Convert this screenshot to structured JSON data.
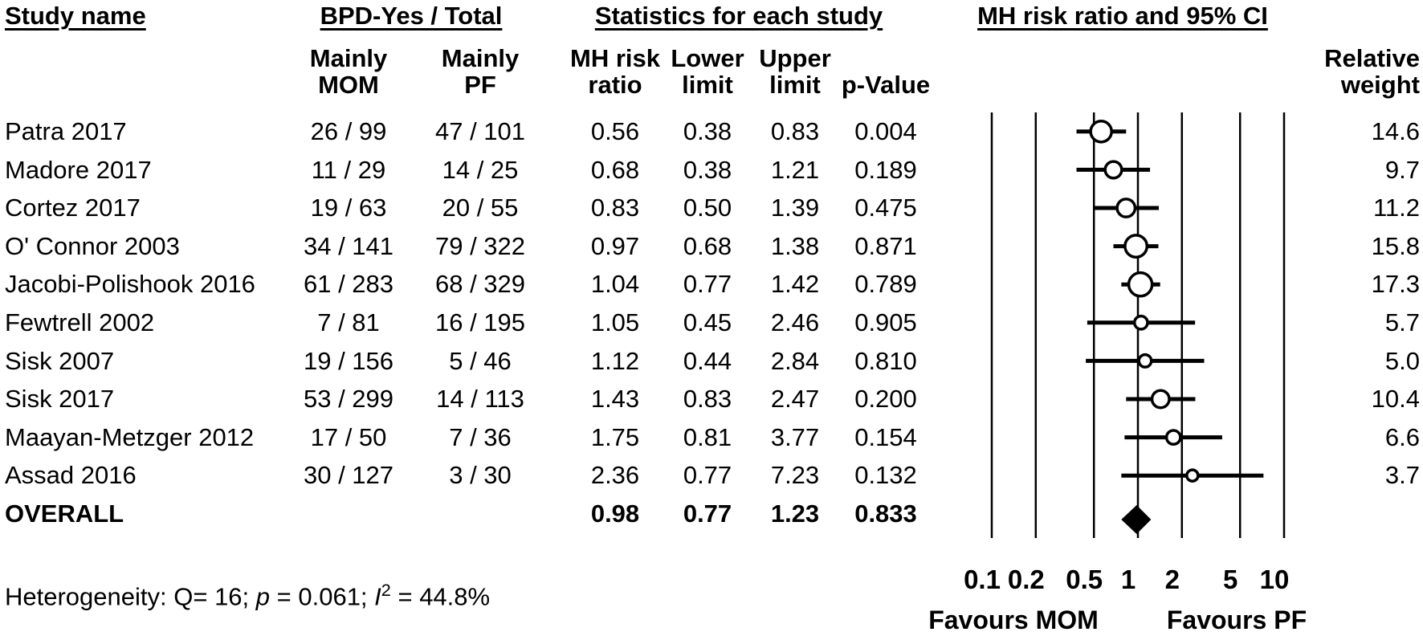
{
  "headers": {
    "study_name": "Study name",
    "bpd_total": "BPD-Yes / Total",
    "statistics": "Statistics for each study",
    "plot": "MH risk ratio and 95% CI",
    "col_mom": "Mainly\nMOM",
    "col_pf": "Mainly\nPF",
    "col_rr": "MH risk\nratio",
    "col_lower": "Lower\nlimit",
    "col_upper": "Upper\nlimit",
    "col_p": "p-Value",
    "col_weight": "Relative\nweight"
  },
  "chart_data": {
    "type": "forest",
    "x_scale": "log10",
    "x_range": [
      0.1,
      10
    ],
    "x_ticks": [
      "0.1",
      "0.2",
      "0.5",
      "1",
      "2",
      "5",
      "10"
    ],
    "grid": "vertical-lines-at-ticks",
    "axis_label_left": "Favours MOM",
    "axis_label_right": "Favours PF",
    "studies": [
      {
        "name": "Patra 2017",
        "mom": "26 / 99",
        "pf": "47 / 101",
        "rr": "0.56",
        "lower": "0.38",
        "upper": "0.83",
        "p": "0.004",
        "weight": "14.6"
      },
      {
        "name": "Madore 2017",
        "mom": "11 / 29",
        "pf": "14 / 25",
        "rr": "0.68",
        "lower": "0.38",
        "upper": "1.21",
        "p": "0.189",
        "weight": "9.7"
      },
      {
        "name": "Cortez 2017",
        "mom": "19 / 63",
        "pf": "20 / 55",
        "rr": "0.83",
        "lower": "0.50",
        "upper": "1.39",
        "p": "0.475",
        "weight": "11.2"
      },
      {
        "name": "O' Connor 2003",
        "mom": "34 / 141",
        "pf": "79 / 322",
        "rr": "0.97",
        "lower": "0.68",
        "upper": "1.38",
        "p": "0.871",
        "weight": "15.8"
      },
      {
        "name": "Jacobi-Polishook 2016",
        "mom": "61 / 283",
        "pf": "68 / 329",
        "rr": "1.04",
        "lower": "0.77",
        "upper": "1.42",
        "p": "0.789",
        "weight": "17.3"
      },
      {
        "name": "Fewtrell 2002",
        "mom": "7 / 81",
        "pf": "16 / 195",
        "rr": "1.05",
        "lower": "0.45",
        "upper": "2.46",
        "p": "0.905",
        "weight": "5.7"
      },
      {
        "name": "Sisk 2007",
        "mom": "19 / 156",
        "pf": "5 / 46",
        "rr": "1.12",
        "lower": "0.44",
        "upper": "2.84",
        "p": "0.810",
        "weight": "5.0"
      },
      {
        "name": "Sisk 2017",
        "mom": "53 / 299",
        "pf": "14 / 113",
        "rr": "1.43",
        "lower": "0.83",
        "upper": "2.47",
        "p": "0.200",
        "weight": "10.4"
      },
      {
        "name": "Maayan-Metzger 2012",
        "mom": "17 / 50",
        "pf": "7 / 36",
        "rr": "1.75",
        "lower": "0.81",
        "upper": "3.77",
        "p": "0.154",
        "weight": "6.6"
      },
      {
        "name": "Assad 2016",
        "mom": "30 / 127",
        "pf": "3 / 30",
        "rr": "2.36",
        "lower": "0.77",
        "upper": "7.23",
        "p": "0.132",
        "weight": "3.7"
      }
    ],
    "overall": {
      "name": "OVERALL",
      "rr": "0.98",
      "lower": "0.77",
      "upper": "1.23",
      "p": "0.833"
    }
  },
  "footer": {
    "heterogeneity_prefix": "Heterogeneity: Q= 16; ",
    "p_symbol": "p",
    "p_part": " = 0.061; ",
    "i_symbol": "I",
    "i_sup": "2",
    "i_part": " = 44.8%"
  },
  "colors": {
    "foreground": "#000000",
    "background": "#ffffff"
  }
}
